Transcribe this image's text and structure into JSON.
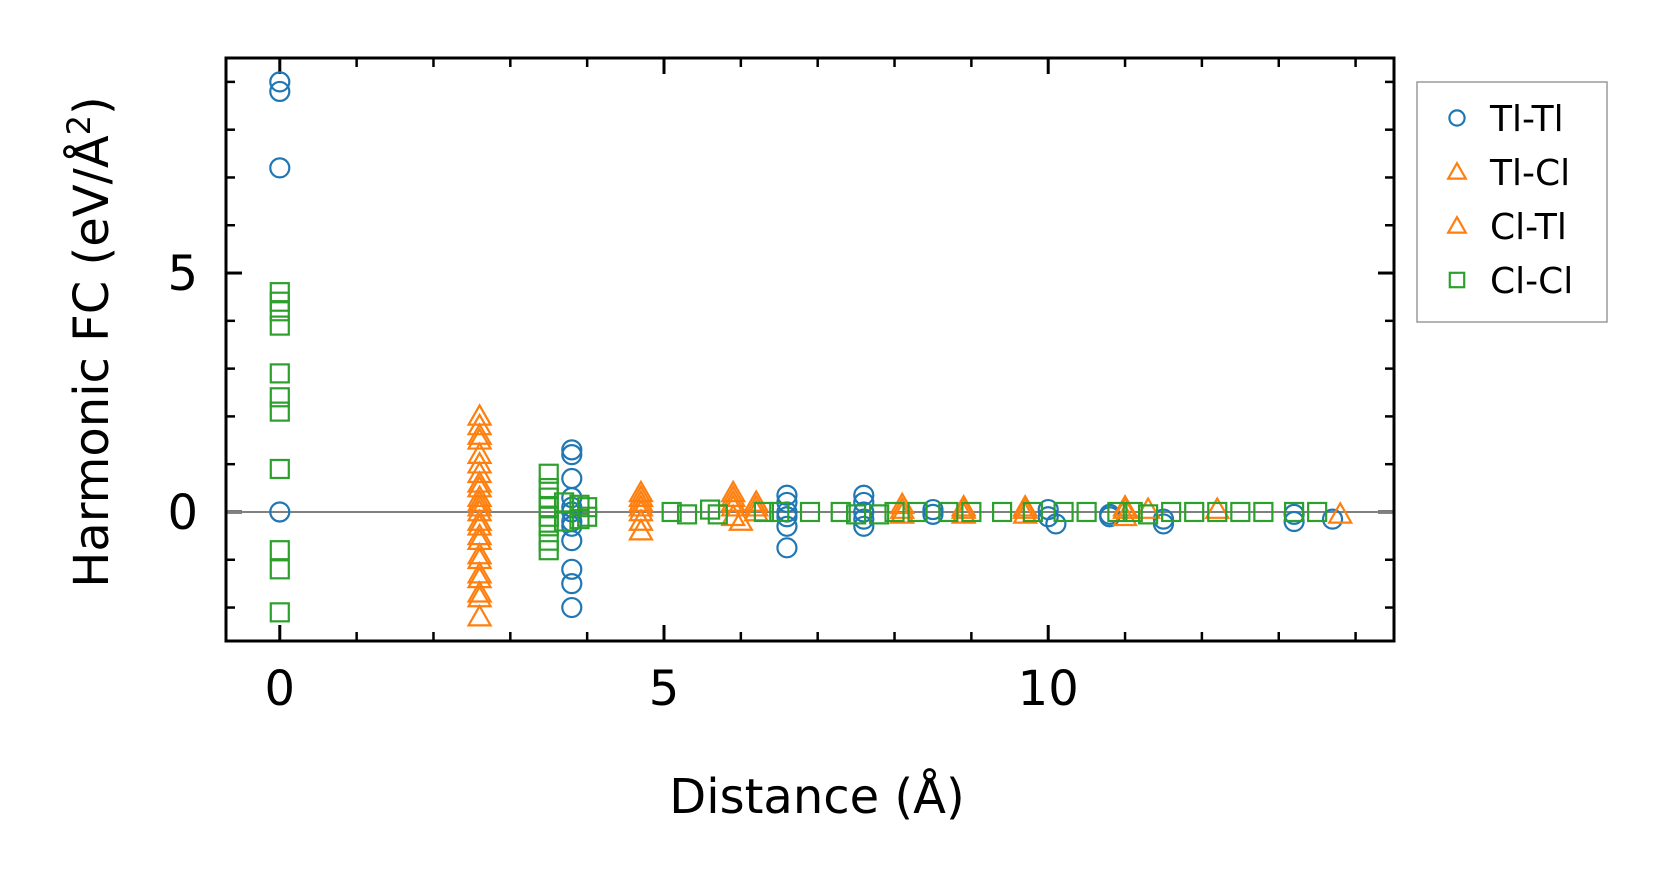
{
  "chart_data": {
    "type": "scatter",
    "xlabel": "Distance (Å)",
    "ylabel_main": "Harmonic FC (eV/Å",
    "ylabel_sup": "2",
    "ylabel_close": ")",
    "xlim": [
      -0.7,
      14.5
    ],
    "ylim": [
      -2.7,
      9.5
    ],
    "xticks": [
      0,
      5,
      10
    ],
    "xtick_labels": [
      "0",
      "5",
      "10"
    ],
    "yticks": [
      0,
      5
    ],
    "ytick_labels": [
      "0",
      "5"
    ],
    "x_minor_step": 1,
    "y_minor_step": 1,
    "zero_line": true,
    "grid": false,
    "legend_position": "outside-right",
    "series": [
      {
        "name": "Tl-Tl",
        "marker": "circle",
        "color": "#1f77b4",
        "x": [
          0,
          0,
          0,
          0,
          3.8,
          3.8,
          3.8,
          3.8,
          3.8,
          3.8,
          3.8,
          3.8,
          3.8,
          3.8,
          3.8,
          3.8,
          6.6,
          6.6,
          6.6,
          6.6,
          6.6,
          6.6,
          7.6,
          7.6,
          7.6,
          7.6,
          7.6,
          8.5,
          8.5,
          10.0,
          10.0,
          10.1,
          10.8,
          10.8,
          11.5,
          11.5,
          13.2,
          13.2,
          13.7
        ],
        "y": [
          9.0,
          8.8,
          7.2,
          0.0,
          1.3,
          1.2,
          0.7,
          0.3,
          0.0,
          -0.2,
          -0.6,
          -1.2,
          -1.5,
          -2.0,
          0.1,
          -0.3,
          0.35,
          0.2,
          0.0,
          -0.1,
          -0.3,
          -0.75,
          0.35,
          0.2,
          0.0,
          -0.15,
          -0.3,
          0.05,
          -0.05,
          0.05,
          -0.1,
          -0.25,
          -0.05,
          -0.1,
          -0.15,
          -0.25,
          -0.05,
          -0.2,
          -0.15
        ]
      },
      {
        "name": "Tl-Cl",
        "marker": "triangle",
        "color": "#ff7f0e",
        "x": [
          2.6,
          2.6,
          2.6,
          2.6,
          2.6,
          2.6,
          2.6,
          2.6,
          2.6,
          2.6,
          2.6,
          2.6,
          2.6,
          2.6,
          4.7,
          4.7,
          4.7,
          4.7,
          5.9,
          5.9,
          5.9,
          6.2,
          6.2,
          8.1,
          8.1,
          8.9,
          8.9,
          9.7,
          9.7,
          11.0,
          11.0,
          11.3,
          12.2,
          13.8
        ],
        "y": [
          2.0,
          1.8,
          1.5,
          1.2,
          0.8,
          0.5,
          0.2,
          0.0,
          -0.3,
          -0.6,
          -1.0,
          -1.4,
          -1.8,
          -2.2,
          0.4,
          0.2,
          0.0,
          -0.4,
          0.4,
          0.2,
          -0.1,
          0.2,
          0.0,
          0.15,
          -0.05,
          0.1,
          -0.05,
          0.1,
          -0.05,
          0.1,
          -0.1,
          0.05,
          0.05,
          -0.05
        ]
      },
      {
        "name": "Cl-Tl",
        "marker": "triangle",
        "color": "#ff7f0e",
        "x": [
          2.6,
          2.6,
          2.6,
          2.6,
          2.6,
          2.6,
          2.6,
          2.6,
          2.6,
          2.6,
          4.7,
          4.7,
          4.7,
          5.9,
          5.9,
          6.0,
          6.2,
          8.1,
          8.9,
          9.7,
          11.0
        ],
        "y": [
          1.6,
          1.0,
          0.6,
          0.3,
          0.1,
          -0.2,
          -0.5,
          -0.9,
          -1.3,
          -1.7,
          0.3,
          0.1,
          -0.2,
          0.3,
          0.1,
          -0.2,
          0.1,
          0.05,
          0.05,
          0.05,
          0.05
        ]
      },
      {
        "name": "Cl-Cl",
        "marker": "square",
        "color": "#2ca02c",
        "x": [
          0,
          0,
          0,
          0,
          0,
          0,
          0,
          0,
          0,
          0,
          0,
          3.5,
          3.5,
          3.5,
          3.5,
          3.5,
          3.5,
          3.5,
          3.5,
          3.7,
          3.7,
          3.9,
          3.9,
          4.0,
          4.0,
          5.1,
          5.3,
          5.6,
          5.7,
          6.3,
          6.5,
          6.9,
          7.3,
          7.5,
          7.8,
          8.0,
          8.3,
          8.7,
          9.0,
          9.4,
          9.8,
          10.2,
          10.5,
          10.9,
          11.1,
          11.3,
          11.6,
          11.9,
          12.2,
          12.5,
          12.8,
          13.2,
          13.5
        ],
        "y": [
          4.6,
          4.4,
          3.9,
          2.9,
          2.4,
          2.1,
          0.9,
          -0.8,
          -1.2,
          -2.1,
          4.2,
          0.8,
          0.5,
          0.3,
          0.1,
          -0.1,
          -0.3,
          -0.6,
          -0.8,
          0.2,
          -0.2,
          0.15,
          -0.15,
          0.1,
          -0.1,
          0.0,
          -0.05,
          0.05,
          -0.05,
          0.0,
          0.0,
          0.0,
          0.0,
          -0.05,
          -0.05,
          0.0,
          0.0,
          0.0,
          0.0,
          0.0,
          0.0,
          0.0,
          0.0,
          0.0,
          0.0,
          -0.05,
          0.0,
          0.0,
          0.0,
          0.0,
          0.0,
          0.0,
          0.0
        ]
      }
    ]
  }
}
